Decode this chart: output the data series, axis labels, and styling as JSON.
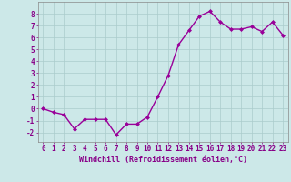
{
  "x": [
    0,
    1,
    2,
    3,
    4,
    5,
    6,
    7,
    8,
    9,
    10,
    11,
    12,
    13,
    14,
    15,
    16,
    17,
    18,
    19,
    20,
    21,
    22,
    23
  ],
  "y": [
    0.0,
    -0.3,
    -0.5,
    -1.7,
    -0.9,
    -0.9,
    -0.9,
    -2.2,
    -1.3,
    -1.3,
    -0.7,
    1.0,
    2.8,
    5.4,
    6.6,
    7.8,
    8.2,
    7.3,
    6.7,
    6.7,
    6.9,
    6.5,
    7.3,
    6.2
  ],
  "line_color": "#990099",
  "marker": "D",
  "marker_size": 2.0,
  "linewidth": 1.0,
  "xlabel": "Windchill (Refroidissement éolien,°C)",
  "xlabel_fontsize": 6,
  "ylabel_ticks": [
    -2,
    -1,
    0,
    1,
    2,
    3,
    4,
    5,
    6,
    7,
    8
  ],
  "xtick_labels": [
    "0",
    "1",
    "2",
    "3",
    "4",
    "5",
    "6",
    "7",
    "8",
    "9",
    "10",
    "11",
    "12",
    "13",
    "14",
    "15",
    "16",
    "17",
    "18",
    "19",
    "20",
    "21",
    "22",
    "23"
  ],
  "xlim": [
    -0.5,
    23.5
  ],
  "ylim": [
    -2.8,
    9.0
  ],
  "bg_color": "#cce8e8",
  "grid_color": "#aacccc",
  "tick_color": "#880088",
  "tick_fontsize": 5.5,
  "spine_color": "#888888"
}
